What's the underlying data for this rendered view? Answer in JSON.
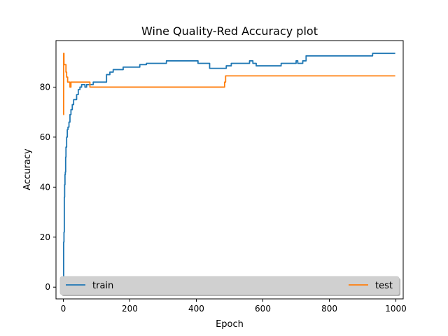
{
  "chart_data": {
    "type": "line",
    "title": "Wine Quality-Red Accuracy plot",
    "xlabel": "Epoch",
    "ylabel": "Accuracy",
    "xlim": [
      -22,
      1022
    ],
    "ylim": [
      -4.7,
      98.6
    ],
    "xticks": [
      0,
      200,
      400,
      600,
      800,
      1000
    ],
    "yticks": [
      0,
      20,
      40,
      60,
      80
    ],
    "grid": false,
    "legend_position": "bottom (expanded)",
    "series": [
      {
        "name": "train",
        "color": "#1f77b4",
        "x": [
          0,
          0,
          1,
          1,
          2,
          2,
          3,
          3,
          4,
          4,
          5,
          5,
          6,
          6,
          7,
          7,
          8,
          8,
          10,
          10,
          12,
          12,
          14,
          14,
          17,
          17,
          20,
          20,
          23,
          23,
          27,
          27,
          31,
          31,
          35,
          35,
          40,
          40,
          45,
          45,
          50,
          50,
          55,
          55,
          60,
          60,
          65,
          65,
          70,
          70,
          75,
          75,
          80,
          80,
          90,
          90,
          100,
          100,
          130,
          130,
          140,
          140,
          150,
          150,
          180,
          180,
          230,
          230,
          250,
          250,
          310,
          310,
          405,
          405,
          440,
          440,
          490,
          490,
          505,
          505,
          560,
          560,
          570,
          570,
          580,
          580,
          655,
          655,
          700,
          700,
          705,
          705,
          720,
          720,
          730,
          730,
          750,
          750,
          930,
          930,
          998
        ],
        "y": [
          0,
          4,
          4,
          18,
          18,
          22,
          22,
          36,
          36,
          41,
          41,
          45,
          45,
          46,
          46,
          52,
          52,
          56,
          56,
          60,
          60,
          63,
          63,
          64,
          64,
          66,
          66,
          69,
          69,
          71,
          71,
          73,
          73,
          75,
          75,
          75,
          75,
          77,
          77,
          79,
          79,
          80,
          80,
          81,
          81,
          81,
          81,
          80,
          80,
          81,
          81,
          81,
          81,
          81,
          81,
          82,
          82,
          82,
          82,
          85,
          85,
          86,
          86,
          87,
          87,
          88,
          88,
          89,
          89,
          89.5,
          89.5,
          90.5,
          90.5,
          89.5,
          89.5,
          87.5,
          87.5,
          88.5,
          88.5,
          89.5,
          89.5,
          90.5,
          90.5,
          89.5,
          89.5,
          88.5,
          88.5,
          89.5,
          89.5,
          90.5,
          90.5,
          89.5,
          89.5,
          90.5,
          90.5,
          92.5,
          92.5,
          92.5,
          92.5,
          93.5,
          93.5
        ]
      },
      {
        "name": "test",
        "color": "#ff7f0e",
        "x": [
          0,
          0,
          1,
          1,
          2,
          2,
          3,
          3,
          8,
          8,
          10,
          10,
          13,
          13,
          16,
          16,
          20,
          20,
          23,
          23,
          24,
          24,
          80,
          80,
          85,
          85,
          485,
          485,
          488,
          488,
          998
        ],
        "y": [
          69,
          69,
          69,
          93.5,
          93.5,
          89,
          89,
          89,
          89,
          86,
          86,
          84,
          84,
          82,
          82,
          82,
          82,
          80,
          80,
          82,
          82,
          82,
          82,
          80,
          80,
          80,
          80,
          82,
          82,
          84.5,
          84.5
        ]
      }
    ]
  }
}
